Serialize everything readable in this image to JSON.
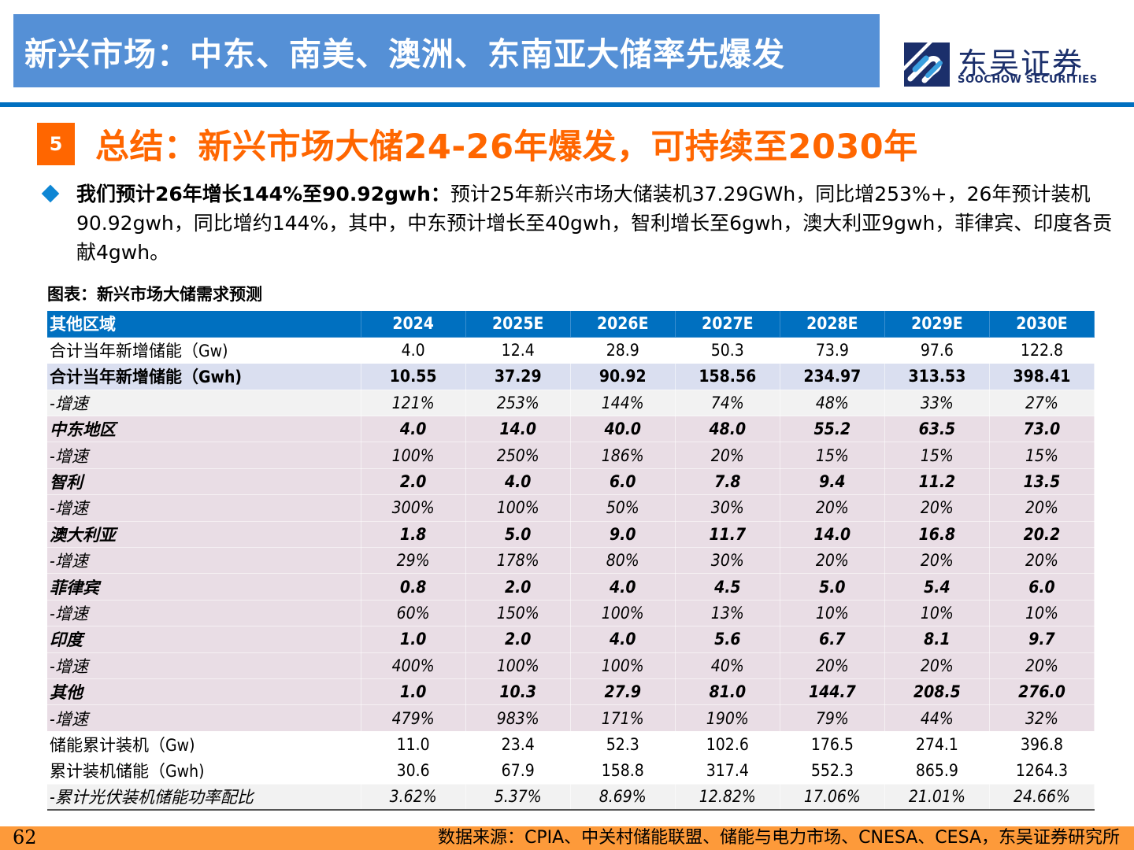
{
  "header": {
    "title": "新兴市场：中东、南美、澳洲、东南亚大储率先爆发",
    "logo_cn": "东吴证券",
    "logo_en": "SOOCHOW SECURITIES",
    "logo_icon": "soochow-s-logo-icon"
  },
  "section": {
    "number": "5",
    "title": "总结：新兴市场大储24-26年爆发，可持续至2030年"
  },
  "bullet": {
    "icon": "diamond-bullet-icon",
    "lead": "我们预计26年增长144%至90.92gwh：",
    "body": "预计25年新兴市场大储装机37.29GWh，同比增253%+，26年预计装机90.92gwh，同比增约144%，其中，中东预计增长至40gwh，智利增长至6gwh，澳大利亚9gwh，菲律宾、印度各贡献4gwh。"
  },
  "table": {
    "caption": "图表：新兴市场大储需求预测",
    "header": [
      "其他区域",
      "2024",
      "2025E",
      "2026E",
      "2027E",
      "2028E",
      "2029E",
      "2030E"
    ],
    "rows": [
      {
        "style": "plain",
        "cells": [
          "合计当年新增储能（Gw)",
          "4.0",
          "12.4",
          "28.9",
          "50.3",
          "73.9",
          "97.6",
          "122.8"
        ]
      },
      {
        "style": "total",
        "cells": [
          "合计当年新增储能（Gwh)",
          "10.55",
          "37.29",
          "90.92",
          "158.56",
          "234.97",
          "313.53",
          "398.41"
        ]
      },
      {
        "style": "grey",
        "cells": [
          "-增速",
          "121%",
          "253%",
          "144%",
          "74%",
          "48%",
          "33%",
          "27%"
        ]
      },
      {
        "style": "region",
        "cells": [
          "中东地区",
          "4.0",
          "14.0",
          "40.0",
          "48.0",
          "55.2",
          "63.5",
          "73.0"
        ]
      },
      {
        "style": "growth",
        "cells": [
          "-增速",
          "100%",
          "250%",
          "186%",
          "20%",
          "15%",
          "15%",
          "15%"
        ]
      },
      {
        "style": "region",
        "cells": [
          "智利",
          "2.0",
          "4.0",
          "6.0",
          "7.8",
          "9.4",
          "11.2",
          "13.5"
        ]
      },
      {
        "style": "growth",
        "cells": [
          "-增速",
          "300%",
          "100%",
          "50%",
          "30%",
          "20%",
          "20%",
          "20%"
        ]
      },
      {
        "style": "region",
        "cells": [
          "澳大利亚",
          "1.8",
          "5.0",
          "9.0",
          "11.7",
          "14.0",
          "16.8",
          "20.2"
        ]
      },
      {
        "style": "growth",
        "cells": [
          "-增速",
          "29%",
          "178%",
          "80%",
          "30%",
          "20%",
          "20%",
          "20%"
        ]
      },
      {
        "style": "region",
        "cells": [
          "菲律宾",
          "0.8",
          "2.0",
          "4.0",
          "4.5",
          "5.0",
          "5.4",
          "6.0"
        ]
      },
      {
        "style": "growth",
        "cells": [
          "-增速",
          "60%",
          "150%",
          "100%",
          "13%",
          "10%",
          "10%",
          "10%"
        ]
      },
      {
        "style": "region",
        "cells": [
          "印度",
          "1.0",
          "2.0",
          "4.0",
          "5.6",
          "6.7",
          "8.1",
          "9.7"
        ]
      },
      {
        "style": "growth",
        "cells": [
          "-增速",
          "400%",
          "100%",
          "100%",
          "40%",
          "20%",
          "20%",
          "20%"
        ]
      },
      {
        "style": "region",
        "cells": [
          "其他",
          "1.0",
          "10.3",
          "27.9",
          "81.0",
          "144.7",
          "208.5",
          "276.0"
        ]
      },
      {
        "style": "growth",
        "cells": [
          "-增速",
          "479%",
          "983%",
          "171%",
          "190%",
          "79%",
          "44%",
          "32%"
        ]
      },
      {
        "style": "plain",
        "cells": [
          "储能累计装机（Gw)",
          "11.0",
          "23.4",
          "52.3",
          "102.6",
          "176.5",
          "274.1",
          "396.8"
        ]
      },
      {
        "style": "plain",
        "cells": [
          "累计装机储能（Gwh)",
          "30.6",
          "67.9",
          "158.8",
          "317.4",
          "552.3",
          "865.9",
          "1264.3"
        ]
      },
      {
        "style": "ratio",
        "cells": [
          "-累计光伏装机储能功率配比",
          "3.62%",
          "5.37%",
          "8.69%",
          "12.82%",
          "17.06%",
          "21.01%",
          "24.66%"
        ]
      }
    ]
  },
  "footer": {
    "page_number": "62",
    "source": "数据来源：CPIA、中关村储能联盟、储能与电力市场、CNESA、CESA，东吴证券研究所"
  },
  "colors": {
    "title_bar": "#5590d6",
    "rule": "#0070c0",
    "accent_orange": "#ff6600",
    "table_header": "#0070c0",
    "total_row": "#dadff0",
    "region_rows": "#e9dde5",
    "grey_rows": "#f2f2f2",
    "footer": "#fd9a3a"
  }
}
